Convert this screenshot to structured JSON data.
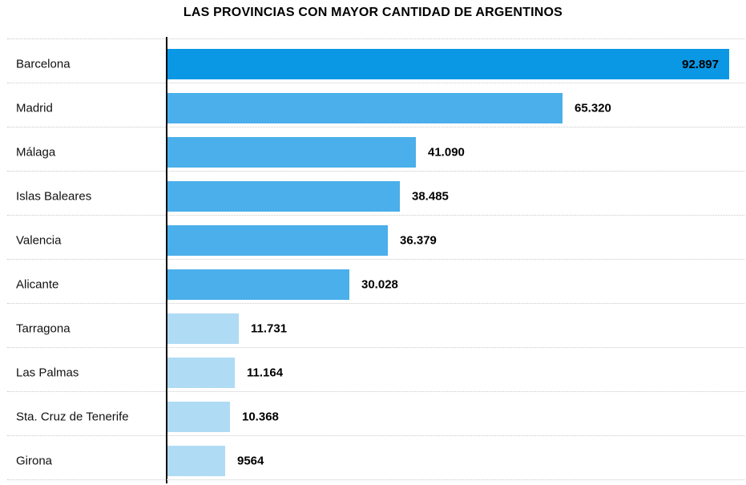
{
  "header": {
    "title": "LAS PROVINCIAS CON MAYOR CANTIDAD DE ARGENTINOS"
  },
  "chart_data": {
    "type": "bar",
    "orientation": "horizontal",
    "title": "LAS PROVINCIAS CON MAYOR CANTIDAD DE ARGENTINOS",
    "xlabel": "",
    "ylabel": "",
    "xlim": [
      0,
      93000
    ],
    "legend": "none",
    "gridlines": "dotted horizontal row separators",
    "categories": [
      "Barcelona",
      "Madrid",
      "Málaga",
      "Islas Baleares",
      "Valencia",
      "Alicante",
      "Tarragona",
      "Las Palmas",
      "Sta. Cruz de Tenerife",
      "Girona"
    ],
    "values": [
      92897,
      65320,
      41090,
      38485,
      36379,
      30028,
      11731,
      11164,
      10368,
      9564
    ],
    "value_labels": [
      "92.897",
      "65.320",
      "41.090",
      "38.485",
      "36.379",
      "30.028",
      "11.731",
      "11.164",
      "10.368",
      "9564"
    ],
    "bar_colors": [
      "#0a97e4",
      "#4aafea",
      "#4aafea",
      "#4aafea",
      "#4aafea",
      "#4aafea",
      "#b0dbf4",
      "#b0dbf4",
      "#b0dbf4",
      "#b0dbf4"
    ],
    "value_label_positions": [
      "inside",
      "outside",
      "outside",
      "outside",
      "outside",
      "outside",
      "outside",
      "outside",
      "outside",
      "outside"
    ],
    "colors": {
      "bar_top": "#0a97e4",
      "bar_mid": "#4aafea",
      "bar_light": "#b0dbf4",
      "axis": "#000000",
      "separator": "#c9c9c9",
      "label_text": "#111111",
      "value_text": "#000000",
      "background": "#ffffff"
    }
  }
}
